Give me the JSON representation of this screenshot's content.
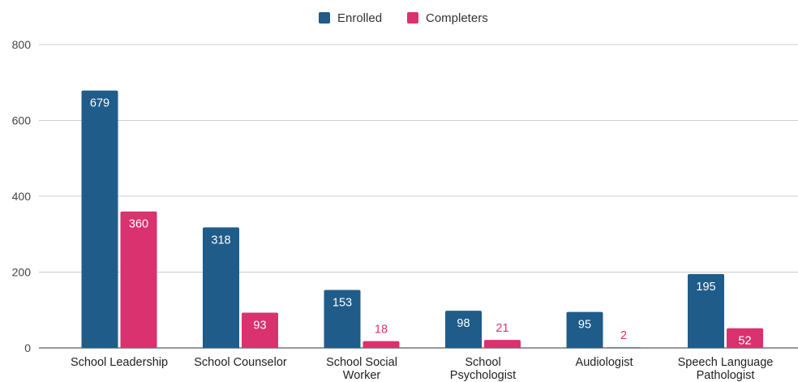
{
  "chart_data": {
    "type": "bar",
    "categories": [
      [
        "School Leadership"
      ],
      [
        "School Counselor"
      ],
      [
        "School Social",
        "Worker"
      ],
      [
        "School",
        "Psychologist"
      ],
      [
        "Audiologist"
      ],
      [
        "Speech Language",
        "Pathologist"
      ]
    ],
    "series": [
      {
        "name": "Enrolled",
        "color": "#1f5c8a",
        "values": [
          679,
          318,
          153,
          98,
          95,
          195
        ]
      },
      {
        "name": "Completers",
        "color": "#d9326e",
        "values": [
          360,
          93,
          18,
          21,
          2,
          52
        ]
      }
    ],
    "ylim": [
      0,
      800
    ],
    "yticks": [
      0,
      200,
      400,
      600,
      800
    ],
    "grid": true,
    "legend": "top-center"
  }
}
